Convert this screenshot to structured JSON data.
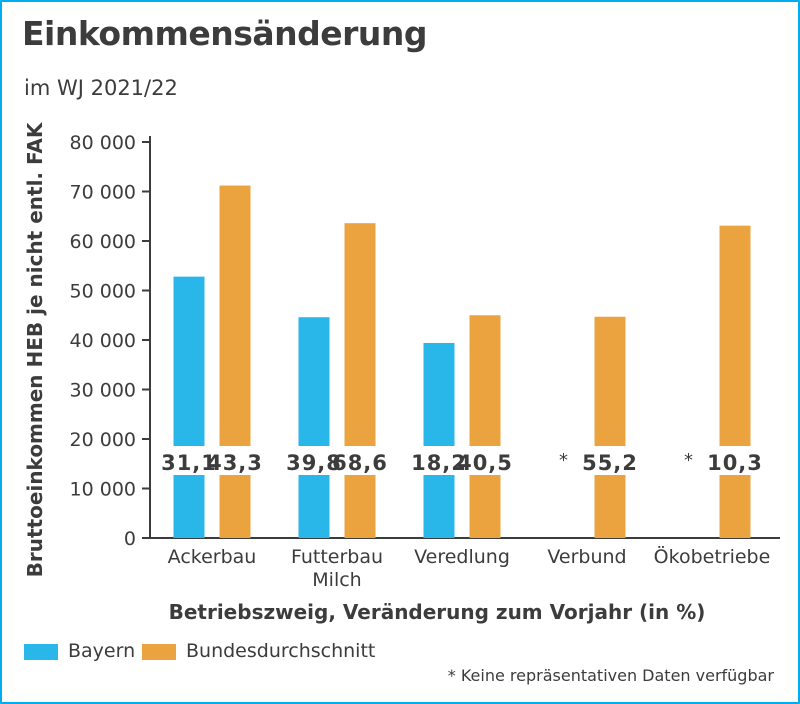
{
  "title": "Einkommensänderung",
  "subtitle": "im WJ 2021/22",
  "footnote": "* Keine repräsentativen Daten verfügbar",
  "colors": {
    "bayern": "#29b6e8",
    "bund": "#eaa33e",
    "frame": "#00aef0",
    "text": "#3c3c3c"
  },
  "legend": [
    {
      "name": "Bayern",
      "color": "#29b6e8"
    },
    {
      "name": "Bundesdurchschnitt",
      "color": "#eaa33e"
    }
  ],
  "chart_data": {
    "type": "bar",
    "title": "Einkommensänderung",
    "subtitle": "im WJ 2021/22",
    "xlabel": "Betriebszweig, Veränderung zum Vorjahr (in %)",
    "ylabel": "Bruttoeinkommen HEB je nicht entl. FAK",
    "ylim": [
      0,
      80000
    ],
    "yticks": [
      0,
      10000,
      20000,
      30000,
      40000,
      50000,
      60000,
      70000,
      80000
    ],
    "ytick_labels": [
      "0",
      "10 000",
      "20 000",
      "30 000",
      "40 000",
      "50 000",
      "60 000",
      "70 000",
      "80 000"
    ],
    "categories": [
      [
        "Ackerbau"
      ],
      [
        "Futterbau",
        "Milch"
      ],
      [
        "Veredlung"
      ],
      [
        "Verbund"
      ],
      [
        "Ökobetriebe"
      ]
    ],
    "series": [
      {
        "name": "Bayern",
        "color": "#29b6e8",
        "values": [
          52800,
          44600,
          39400,
          null,
          null
        ],
        "change_labels": [
          "31,1",
          "39,8",
          "18,2",
          "*",
          "*"
        ]
      },
      {
        "name": "Bundesdurchschnitt",
        "color": "#eaa33e",
        "values": [
          71200,
          63600,
          45000,
          44700,
          63100
        ],
        "change_labels": [
          "43,3",
          "68,6",
          "40,5",
          "55,2",
          "10,3"
        ]
      }
    ],
    "grid": false,
    "legend_position": "bottom-left"
  }
}
